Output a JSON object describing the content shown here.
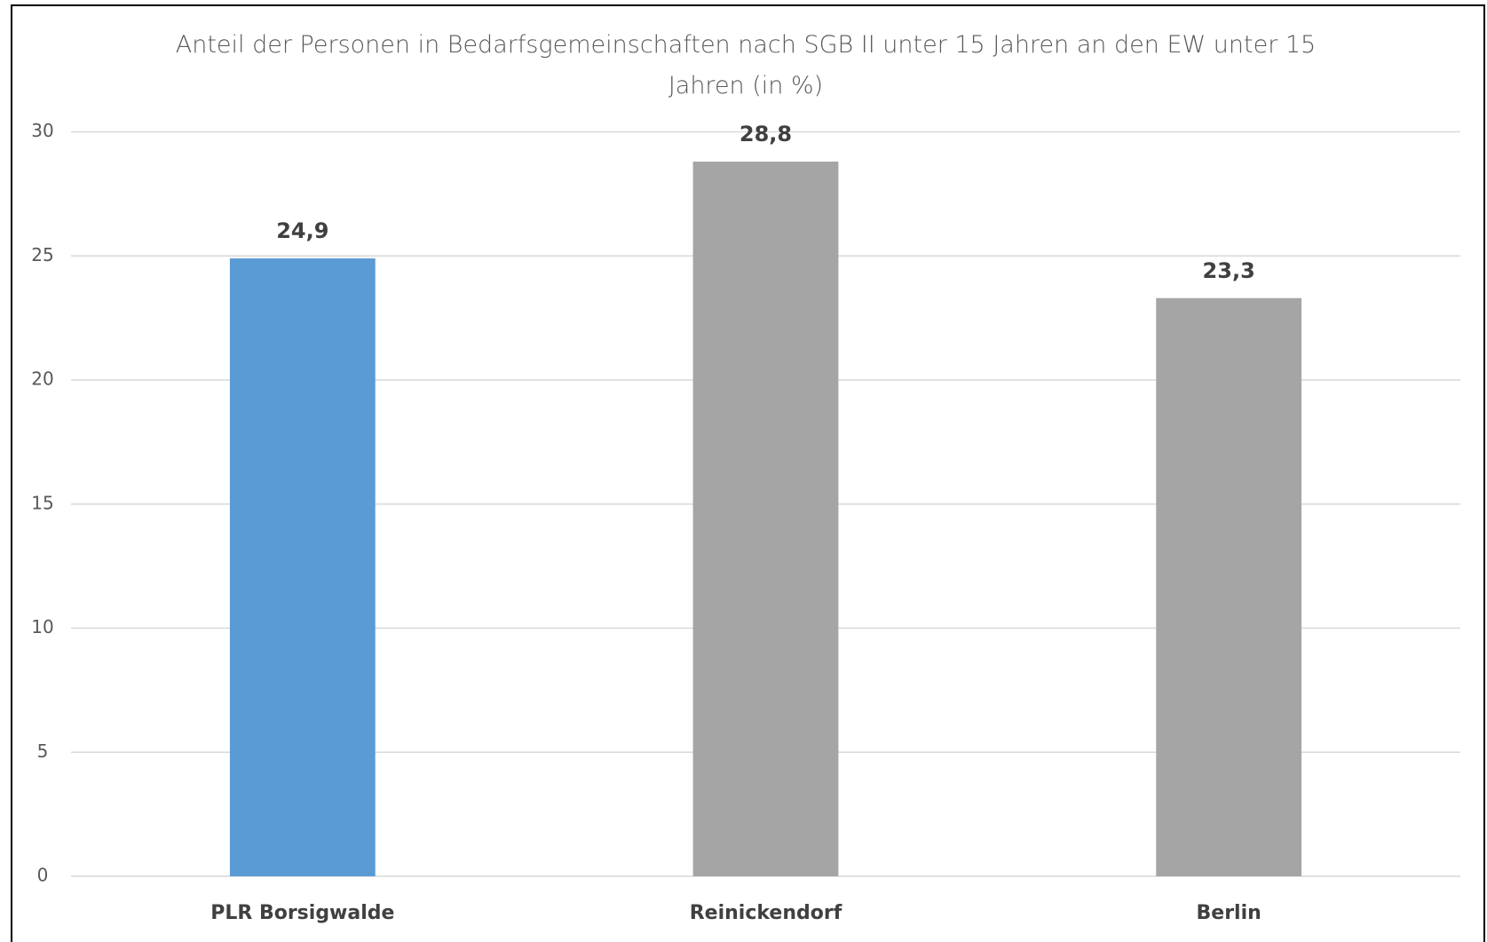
{
  "chart_data": {
    "type": "bar",
    "title": "Anteil der Personen in Bedarfsgemeinschaften nach SGB II unter 15 Jahren an den EW unter 15 Jahren (in %)",
    "categories": [
      "PLR Borsigwalde",
      "Reinickendorf",
      "Berlin"
    ],
    "values": [
      24.9,
      28.8,
      23.3
    ],
    "value_labels": [
      "24,9",
      "28,8",
      "23,3"
    ],
    "colors": [
      "#5b9bd5",
      "#a5a5a5",
      "#a5a5a5"
    ],
    "ylim": [
      0,
      30
    ],
    "yticks": [
      0,
      5,
      10,
      15,
      20,
      25,
      30
    ],
    "grid": true
  }
}
